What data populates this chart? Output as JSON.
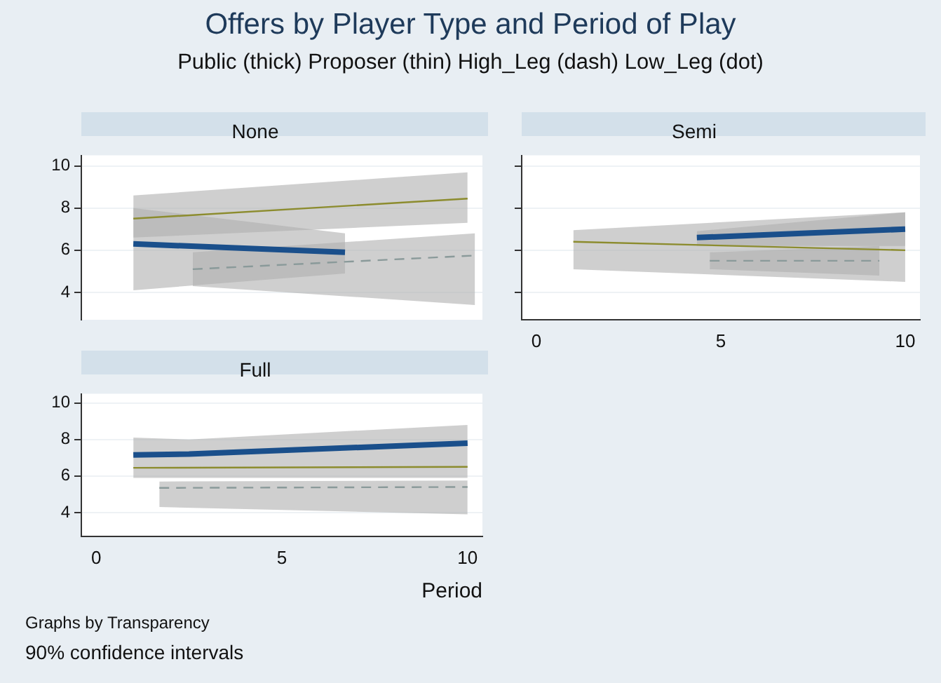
{
  "chart_data": [
    {
      "type": "line",
      "title": "Offers by Player Type and Period of Play",
      "subtitle": "Public (thick)   Proposer (thin)   High_Leg (dash)   Low_Leg (dot)",
      "annotations": [
        "None"
      ],
      "xlim": [
        -0.4,
        10.4
      ],
      "ylim": [
        2.7,
        10.5
      ],
      "yticks": [
        4,
        6,
        8,
        10
      ],
      "tick_labels": "y",
      "grid": "y",
      "legend": false,
      "series": [
        {
          "color": "#1a4f8b",
          "line_style": "solid",
          "x": [
            1,
            6.7
          ],
          "values": [
            6.3,
            5.9
          ],
          "lower": [
            4.1,
            4.9
          ],
          "upper": [
            8.0,
            6.8
          ]
        },
        {
          "color": "#8c8c2e",
          "line_style": "solid",
          "x": [
            1,
            10
          ],
          "values": [
            7.5,
            8.45
          ],
          "lower": [
            6.6,
            7.3
          ],
          "upper": [
            8.6,
            9.7
          ]
        },
        {
          "color": "#8a9a9a",
          "line_style": "dashed",
          "x": [
            2.6,
            10.2
          ],
          "values": [
            5.1,
            5.75
          ],
          "lower": [
            4.3,
            3.4
          ],
          "upper": [
            5.9,
            6.8
          ]
        }
      ]
    },
    {
      "type": "line",
      "annotations": [
        "Semi"
      ],
      "xlim": [
        -0.4,
        10.4
      ],
      "ylim": [
        2.7,
        10.5
      ],
      "xticks": [
        0,
        5,
        10
      ],
      "yticks": [
        4,
        6,
        8,
        10
      ],
      "tick_labels": "x",
      "grid": "y",
      "legend": false,
      "series": [
        {
          "color": "#1a4f8b",
          "line_style": "solid",
          "x": [
            4.35,
            10
          ],
          "values": [
            6.6,
            7.0
          ],
          "lower": [
            6.2,
            6.2
          ],
          "upper": [
            6.9,
            7.8
          ]
        },
        {
          "color": "#8c8c2e",
          "line_style": "solid",
          "x": [
            1,
            10
          ],
          "values": [
            6.4,
            6.0
          ],
          "lower": [
            5.1,
            4.5
          ],
          "upper": [
            6.95,
            7.8
          ]
        },
        {
          "color": "#8a9a9a",
          "line_style": "dashed",
          "x": [
            4.7,
            9.3
          ],
          "values": [
            5.5,
            5.5
          ],
          "lower": [
            5.1,
            4.8
          ],
          "upper": [
            5.9,
            6.2
          ]
        }
      ]
    },
    {
      "type": "line",
      "annotations": [
        "Full",
        "Graphs by Transparency",
        "90% confidence intervals"
      ],
      "xlabel": "Period",
      "xlim": [
        -0.4,
        10.4
      ],
      "ylim": [
        2.7,
        10.5
      ],
      "xticks": [
        0,
        5,
        10
      ],
      "yticks": [
        4,
        6,
        8,
        10
      ],
      "grid": "y",
      "legend": false,
      "series": [
        {
          "color": "#1a4f8b",
          "line_style": "solid",
          "x": [
            1,
            2.5,
            10
          ],
          "values": [
            7.15,
            7.2,
            7.8
          ],
          "lower": [
            5.9,
            5.9,
            5.9
          ],
          "upper": [
            8.1,
            8.0,
            8.8
          ]
        },
        {
          "color": "#8c8c2e",
          "line_style": "solid",
          "x": [
            1,
            10
          ],
          "values": [
            6.45,
            6.5
          ]
        },
        {
          "color": "#8a9a9a",
          "line_style": "dashed",
          "x": [
            1.7,
            10
          ],
          "values": [
            5.35,
            5.4
          ],
          "lower": [
            4.3,
            3.9
          ],
          "upper": [
            5.7,
            5.75
          ]
        }
      ]
    }
  ]
}
